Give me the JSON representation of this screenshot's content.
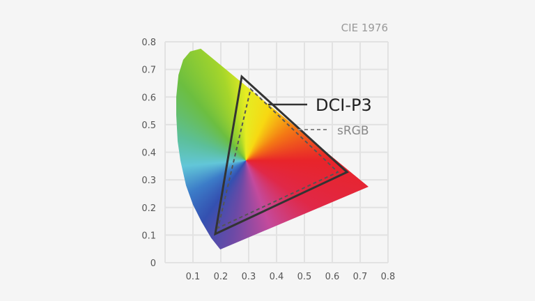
{
  "chart_data": {
    "type": "scatter",
    "title": "CIE 1976",
    "xlim": [
      0,
      0.8
    ],
    "ylim": [
      0,
      0.8
    ],
    "grid": true,
    "x_ticks": [
      "0.1",
      "0.2",
      "0.3",
      "0.4",
      "0.5",
      "0.6",
      "0.7",
      "0.8"
    ],
    "y_ticks": [
      "0",
      "0.1",
      "0.2",
      "0.3",
      "0.4",
      "0.5",
      "0.6",
      "0.7",
      "0.8"
    ],
    "spectral_locus": [
      [
        0.128,
        0.775
      ],
      [
        0.09,
        0.765
      ],
      [
        0.065,
        0.735
      ],
      [
        0.048,
        0.68
      ],
      [
        0.04,
        0.6
      ],
      [
        0.04,
        0.535
      ],
      [
        0.045,
        0.44
      ],
      [
        0.055,
        0.37
      ],
      [
        0.075,
        0.28
      ],
      [
        0.1,
        0.21
      ],
      [
        0.13,
        0.15
      ],
      [
        0.165,
        0.09
      ],
      [
        0.198,
        0.048
      ],
      [
        0.73,
        0.275
      ],
      [
        0.128,
        0.775
      ]
    ],
    "white_point": [
      0.29,
      0.37
    ],
    "series": [
      {
        "name": "DCI-P3",
        "style": "solid",
        "color": "#333333",
        "points": [
          [
            0.275,
            0.674
          ],
          [
            0.653,
            0.328
          ],
          [
            0.18,
            0.104
          ]
        ]
      },
      {
        "name": "sRGB",
        "style": "dashed",
        "color": "#555555",
        "points": [
          [
            0.307,
            0.629
          ],
          [
            0.62,
            0.328
          ],
          [
            0.19,
            0.126
          ]
        ]
      }
    ],
    "legend_placement": "inside-right"
  },
  "colors": {
    "background": "#f5f5f5",
    "grid": "#e2e2e2"
  }
}
